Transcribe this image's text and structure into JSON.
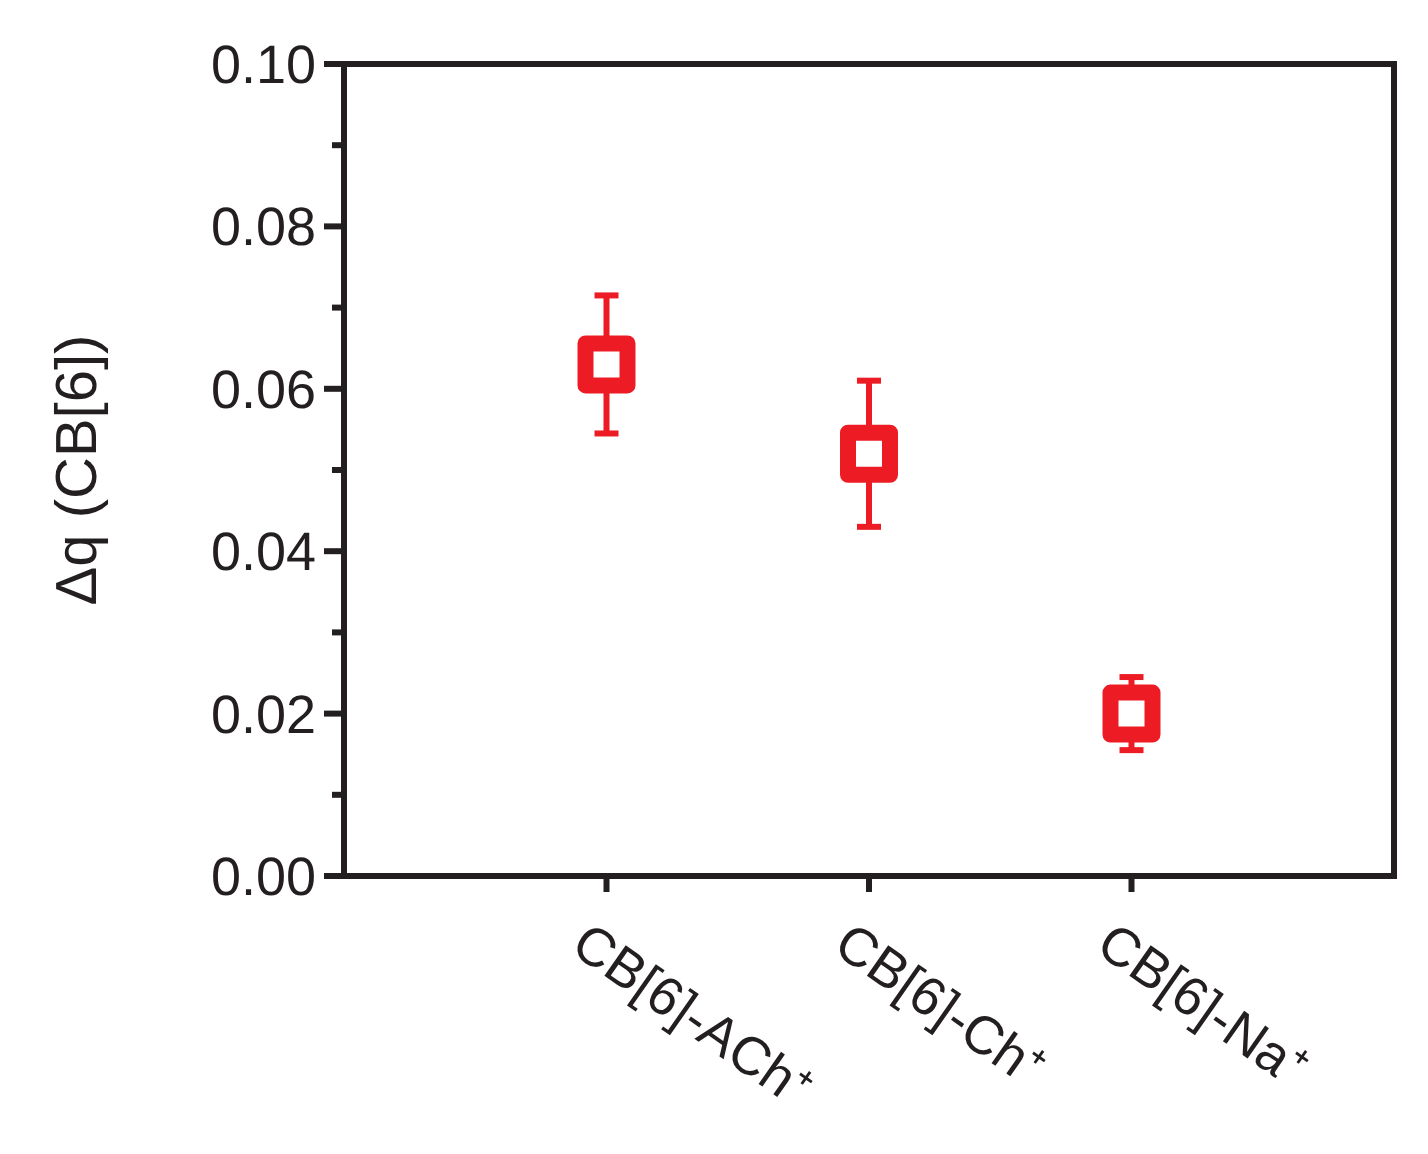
{
  "chart_data": {
    "type": "scatter",
    "ylabel": "Δq (CB[6])",
    "categories": [
      "CB[6]-ACh⁺",
      "CB[6]-Ch⁺",
      "CB[6]-Na⁺"
    ],
    "series": [
      {
        "color": "#ed1c24",
        "values": [
          0.063,
          0.052,
          0.02
        ],
        "errors": [
          [
            0.0545,
            0.0715
          ],
          [
            0.043,
            0.061
          ],
          [
            0.0155,
            0.0245
          ]
        ]
      }
    ],
    "marker": "square",
    "ylim": [
      0,
      0.1
    ],
    "yticks": [
      {
        "value": 0,
        "label": "0.00"
      },
      {
        "value": 0.01,
        "label": null
      },
      {
        "value": 0.02,
        "label": "0.02"
      },
      {
        "value": 0.03,
        "label": null
      },
      {
        "value": 0.04,
        "label": "0.04"
      },
      {
        "value": 0.05,
        "label": null
      },
      {
        "value": 0.06,
        "label": "0.06"
      },
      {
        "value": 0.07,
        "label": null
      },
      {
        "value": 0.08,
        "label": "0.08"
      },
      {
        "value": 0.09,
        "label": null
      },
      {
        "value": 0.1,
        "label": "0.10"
      }
    ],
    "grid": false
  }
}
